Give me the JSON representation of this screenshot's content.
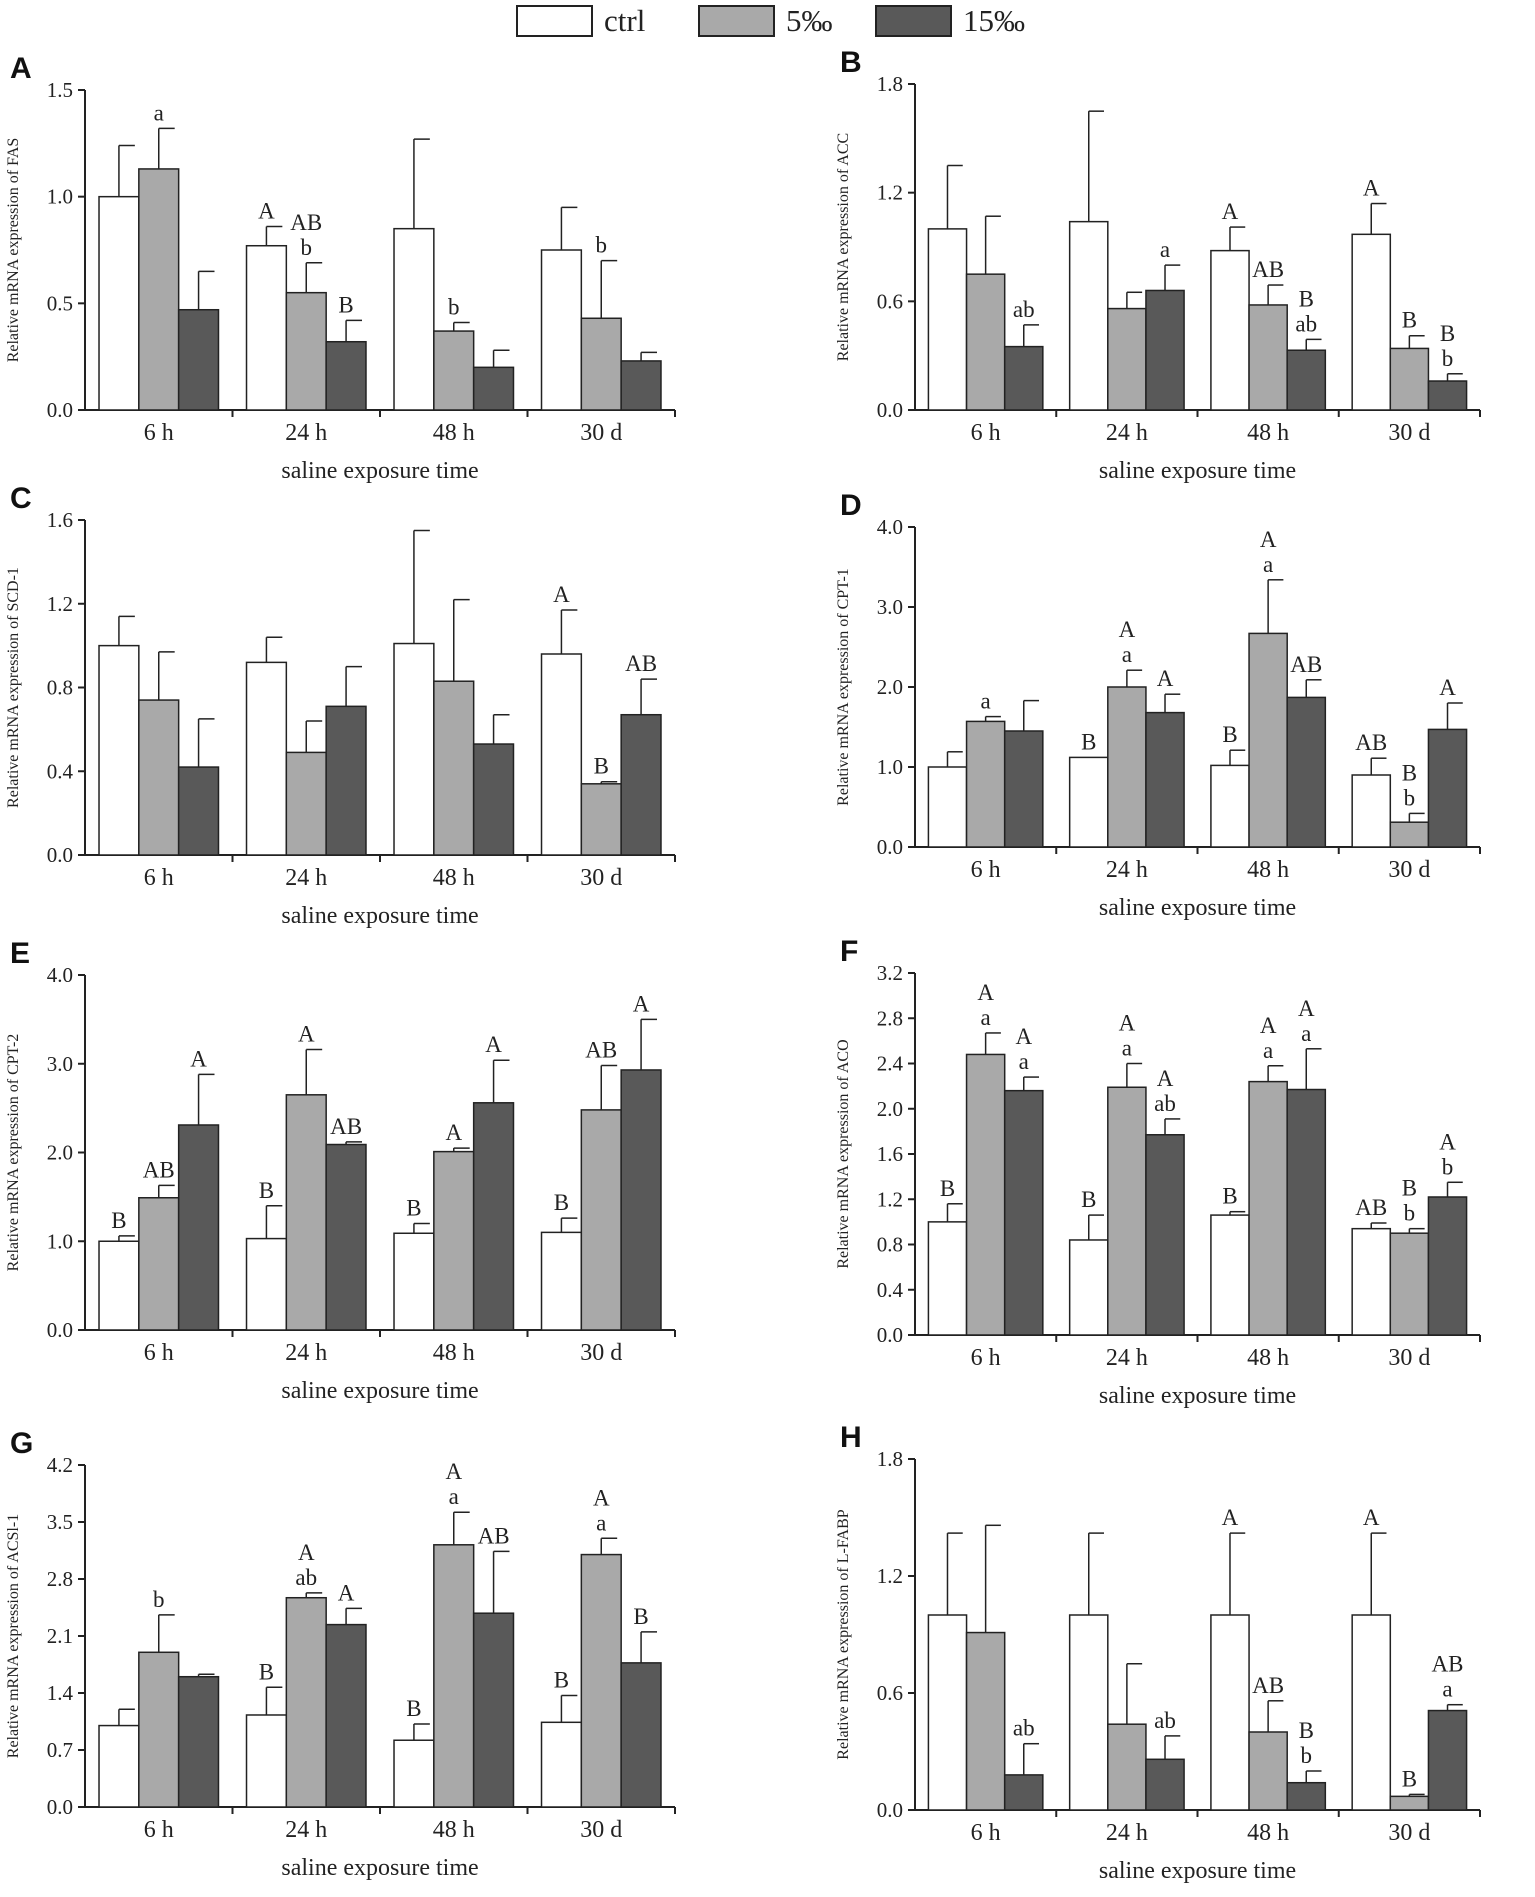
{
  "legend": {
    "items": [
      {
        "label": "ctrl",
        "color": "#ffffff"
      },
      {
        "label": "5‰",
        "color": "#a9a9a9"
      },
      {
        "label": "15‰",
        "color": "#595959"
      }
    ]
  },
  "chart_data": [
    {
      "type": "bar",
      "panel": "A",
      "title": "",
      "xlabel": "saline exposure time",
      "ylabel": "Relative mRNA expression of FAS",
      "categories": [
        "6 h",
        "24 h",
        "48 h",
        "30 d"
      ],
      "ylim": [
        0,
        1.5
      ],
      "yticks": [
        "0.0",
        "0.5",
        "1.0",
        "1.5"
      ],
      "series": [
        {
          "name": "ctrl",
          "values": [
            1.0,
            0.77,
            0.85,
            0.75
          ],
          "errors": [
            0.24,
            0.09,
            0.42,
            0.2
          ],
          "labels": [
            "",
            "A",
            "",
            ""
          ]
        },
        {
          "name": "5‰",
          "values": [
            1.13,
            0.55,
            0.37,
            0.43
          ],
          "errors": [
            0.19,
            0.14,
            0.04,
            0.27
          ],
          "labels": [
            "a",
            "AB\nb",
            "b",
            "b"
          ]
        },
        {
          "name": "15‰",
          "values": [
            0.47,
            0.32,
            0.2,
            0.23
          ],
          "errors": [
            0.18,
            0.1,
            0.08,
            0.04
          ],
          "labels": [
            "",
            "B",
            "",
            ""
          ]
        }
      ]
    },
    {
      "type": "bar",
      "panel": "B",
      "title": "",
      "xlabel": "saline exposure time",
      "ylabel": "Relative mRNA expression of ACC",
      "categories": [
        "6 h",
        "24 h",
        "48 h",
        "30 d"
      ],
      "ylim": [
        0,
        1.8
      ],
      "yticks": [
        "0.0",
        "0.6",
        "1.2",
        "1.8"
      ],
      "series": [
        {
          "name": "ctrl",
          "values": [
            1.0,
            1.04,
            0.88,
            0.97
          ],
          "errors": [
            0.35,
            0.61,
            0.13,
            0.17
          ],
          "labels": [
            "",
            "",
            "A",
            "A"
          ]
        },
        {
          "name": "5‰",
          "values": [
            0.75,
            0.56,
            0.58,
            0.34
          ],
          "errors": [
            0.32,
            0.09,
            0.11,
            0.07
          ],
          "labels": [
            "",
            "",
            "AB",
            "B"
          ]
        },
        {
          "name": "15‰",
          "values": [
            0.35,
            0.66,
            0.33,
            0.16
          ],
          "errors": [
            0.12,
            0.14,
            0.06,
            0.04
          ],
          "labels": [
            "ab",
            "a",
            "B\nab",
            "B\nb"
          ]
        }
      ]
    },
    {
      "type": "bar",
      "panel": "C",
      "title": "",
      "xlabel": "saline exposure time",
      "ylabel": "Relative mRNA expression of  SCD-1",
      "categories": [
        "6 h",
        "24 h",
        "48 h",
        "30 d"
      ],
      "ylim": [
        0,
        1.6
      ],
      "yticks": [
        "0.0",
        "0.4",
        "0.8",
        "1.2",
        "1.6"
      ],
      "series": [
        {
          "name": "ctrl",
          "values": [
            1.0,
            0.92,
            1.01,
            0.96
          ],
          "errors": [
            0.14,
            0.12,
            0.54,
            0.21
          ],
          "labels": [
            "",
            "",
            "",
            "A"
          ]
        },
        {
          "name": "5‰",
          "values": [
            0.74,
            0.49,
            0.83,
            0.34
          ],
          "errors": [
            0.23,
            0.15,
            0.39,
            0.01
          ],
          "labels": [
            "",
            "",
            "",
            "B"
          ]
        },
        {
          "name": "15‰",
          "values": [
            0.42,
            0.71,
            0.53,
            0.67
          ],
          "errors": [
            0.23,
            0.19,
            0.14,
            0.17
          ],
          "labels": [
            "",
            "",
            "",
            "AB"
          ]
        }
      ]
    },
    {
      "type": "bar",
      "panel": "D",
      "title": "",
      "xlabel": "saline exposure time",
      "ylabel": "Relative mRNA expression of  CPT-1",
      "categories": [
        "6 h",
        "24 h",
        "48 h",
        "30 d"
      ],
      "ylim": [
        0,
        4.0
      ],
      "yticks": [
        "0.0",
        "1.0",
        "2.0",
        "3.0",
        "4.0"
      ],
      "series": [
        {
          "name": "ctrl",
          "values": [
            1.0,
            1.12,
            1.02,
            0.9
          ],
          "errors": [
            0.19,
            0.0,
            0.19,
            0.21
          ],
          "labels": [
            "",
            "B",
            "B",
            "AB"
          ]
        },
        {
          "name": "5‰",
          "values": [
            1.57,
            2.0,
            2.67,
            0.31
          ],
          "errors": [
            0.06,
            0.21,
            0.67,
            0.11
          ],
          "labels": [
            "a",
            "A\na",
            "A\na",
            "B\nb"
          ]
        },
        {
          "name": "15‰",
          "values": [
            1.45,
            1.68,
            1.87,
            1.47
          ],
          "errors": [
            0.38,
            0.23,
            0.22,
            0.33
          ],
          "labels": [
            "",
            "A",
            "AB",
            "A"
          ]
        }
      ]
    },
    {
      "type": "bar",
      "panel": "E",
      "title": "",
      "xlabel": "saline exposure time",
      "ylabel": "Relative  mRNA  expression of  CPT-2",
      "categories": [
        "6 h",
        "24 h",
        "48 h",
        "30 d"
      ],
      "ylim": [
        0,
        4.0
      ],
      "yticks": [
        "0.0",
        "1.0",
        "2.0",
        "3.0",
        "4.0"
      ],
      "series": [
        {
          "name": "ctrl",
          "values": [
            1.0,
            1.03,
            1.09,
            1.1
          ],
          "errors": [
            0.06,
            0.37,
            0.11,
            0.16
          ],
          "labels": [
            "B",
            "B",
            "B",
            "B"
          ]
        },
        {
          "name": "5‰",
          "values": [
            1.49,
            2.65,
            2.01,
            2.48
          ],
          "errors": [
            0.14,
            0.51,
            0.04,
            0.5
          ],
          "labels": [
            "AB",
            "A",
            "A",
            "AB"
          ]
        },
        {
          "name": "15‰",
          "values": [
            2.31,
            2.09,
            2.56,
            2.93
          ],
          "errors": [
            0.57,
            0.03,
            0.48,
            0.57
          ],
          "labels": [
            "A",
            "AB",
            "A",
            "A"
          ]
        }
      ]
    },
    {
      "type": "bar",
      "panel": "F",
      "title": "",
      "xlabel": "saline exposure time",
      "ylabel": "Relative mRNA expression of  ACO",
      "categories": [
        "6 h",
        "24 h",
        "48 h",
        "30 d"
      ],
      "ylim": [
        0,
        3.2
      ],
      "yticks": [
        "0.0",
        "0.4",
        "0.8",
        "1.2",
        "1.6",
        "2.0",
        "2.4",
        "2.8",
        "3.2"
      ],
      "series": [
        {
          "name": "ctrl",
          "values": [
            1.0,
            0.84,
            1.06,
            0.94
          ],
          "errors": [
            0.16,
            0.22,
            0.03,
            0.05
          ],
          "labels": [
            "B",
            "B",
            "B",
            "AB"
          ]
        },
        {
          "name": "5‰",
          "values": [
            2.48,
            2.19,
            2.24,
            0.9
          ],
          "errors": [
            0.19,
            0.21,
            0.14,
            0.04
          ],
          "labels": [
            "A\na",
            "A\na",
            "A\na",
            "B\nb"
          ]
        },
        {
          "name": "15‰",
          "values": [
            2.16,
            1.77,
            2.17,
            1.22
          ],
          "errors": [
            0.12,
            0.14,
            0.36,
            0.13
          ],
          "labels": [
            "A\na",
            "A\nab",
            "A\na",
            "A\nb"
          ]
        }
      ]
    },
    {
      "type": "bar",
      "panel": "G",
      "title": "",
      "xlabel": "saline exposure time",
      "ylabel": "Relative mRNA expression of  ACSl-1",
      "categories": [
        "6 h",
        "24 h",
        "48 h",
        "30 d"
      ],
      "ylim": [
        0,
        4.2
      ],
      "yticks": [
        "0.0",
        "0.7",
        "1.4",
        "2.1",
        "2.8",
        "3.5",
        "4.2"
      ],
      "series": [
        {
          "name": "ctrl",
          "values": [
            1.0,
            1.13,
            0.82,
            1.04
          ],
          "errors": [
            0.2,
            0.34,
            0.2,
            0.33
          ],
          "labels": [
            "",
            "B",
            "B",
            "B"
          ]
        },
        {
          "name": "5‰",
          "values": [
            1.9,
            2.57,
            3.22,
            3.1
          ],
          "errors": [
            0.46,
            0.06,
            0.4,
            0.2
          ],
          "labels": [
            "b",
            "A\nab",
            "A\na",
            "A\na"
          ]
        },
        {
          "name": "15‰",
          "values": [
            1.6,
            2.24,
            2.38,
            1.77
          ],
          "errors": [
            0.03,
            0.2,
            0.76,
            0.38
          ],
          "labels": [
            "",
            "A",
            "AB",
            "B"
          ]
        }
      ]
    },
    {
      "type": "bar",
      "panel": "H",
      "title": "",
      "xlabel": "saline exposure time",
      "ylabel": "Relative mRNA expression of L-FABP",
      "categories": [
        "6 h",
        "24 h",
        "48 h",
        "30 d"
      ],
      "ylim": [
        0,
        1.8
      ],
      "yticks": [
        "0.0",
        "0.6",
        "1.2",
        "1.8"
      ],
      "series": [
        {
          "name": "ctrl",
          "values": [
            1.0,
            1.0,
            1.0,
            1.0
          ],
          "errors": [
            0.42,
            0.42,
            0.42,
            0.42
          ],
          "labels": [
            "",
            "",
            "A",
            "A"
          ]
        },
        {
          "name": "5‰",
          "values": [
            0.91,
            0.44,
            0.4,
            0.07
          ],
          "errors": [
            0.55,
            0.31,
            0.16,
            0.01
          ],
          "labels": [
            "",
            "",
            "AB",
            "B"
          ]
        },
        {
          "name": "15‰",
          "values": [
            0.18,
            0.26,
            0.14,
            0.51
          ],
          "errors": [
            0.16,
            0.12,
            0.06,
            0.03
          ],
          "labels": [
            "ab",
            "ab",
            "B\nb",
            "AB\na"
          ]
        }
      ]
    }
  ]
}
